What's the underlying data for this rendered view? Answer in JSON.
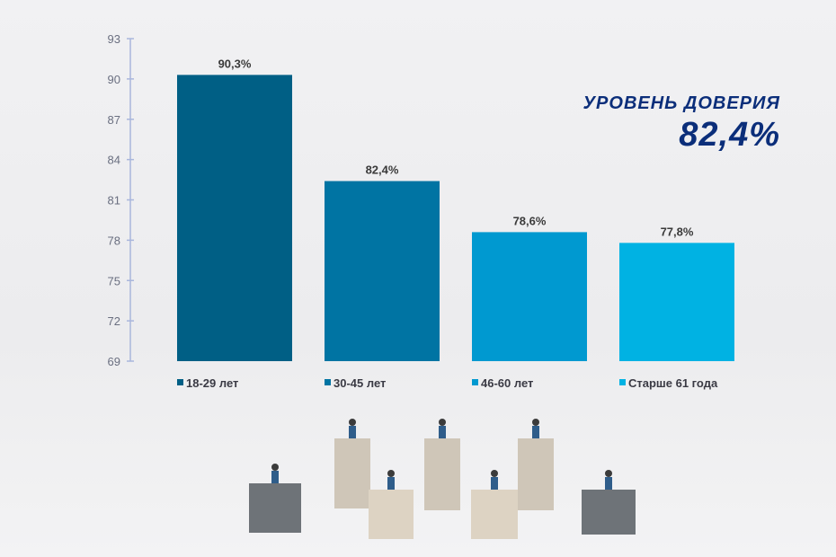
{
  "headline": {
    "title": "УРОВЕНЬ ДОВЕРИЯ",
    "value": "82,4%"
  },
  "chart_data": {
    "type": "bar",
    "categories": [
      "18-29 лет",
      "30-45 лет",
      "46-60  лет",
      "Старше 61 года"
    ],
    "values": [
      90.3,
      82.4,
      78.6,
      77.8
    ],
    "data_labels": [
      "90,3%",
      "82,4%",
      "78,6%",
      "77,8%"
    ],
    "colors": [
      "#005f85",
      "#0074a3",
      "#0099d0",
      "#00b2e3"
    ],
    "ylim": [
      69,
      93
    ],
    "yticks": [
      69,
      72,
      75,
      78,
      81,
      84,
      87,
      90,
      93
    ],
    "legend": "bottom",
    "grid": false
  }
}
